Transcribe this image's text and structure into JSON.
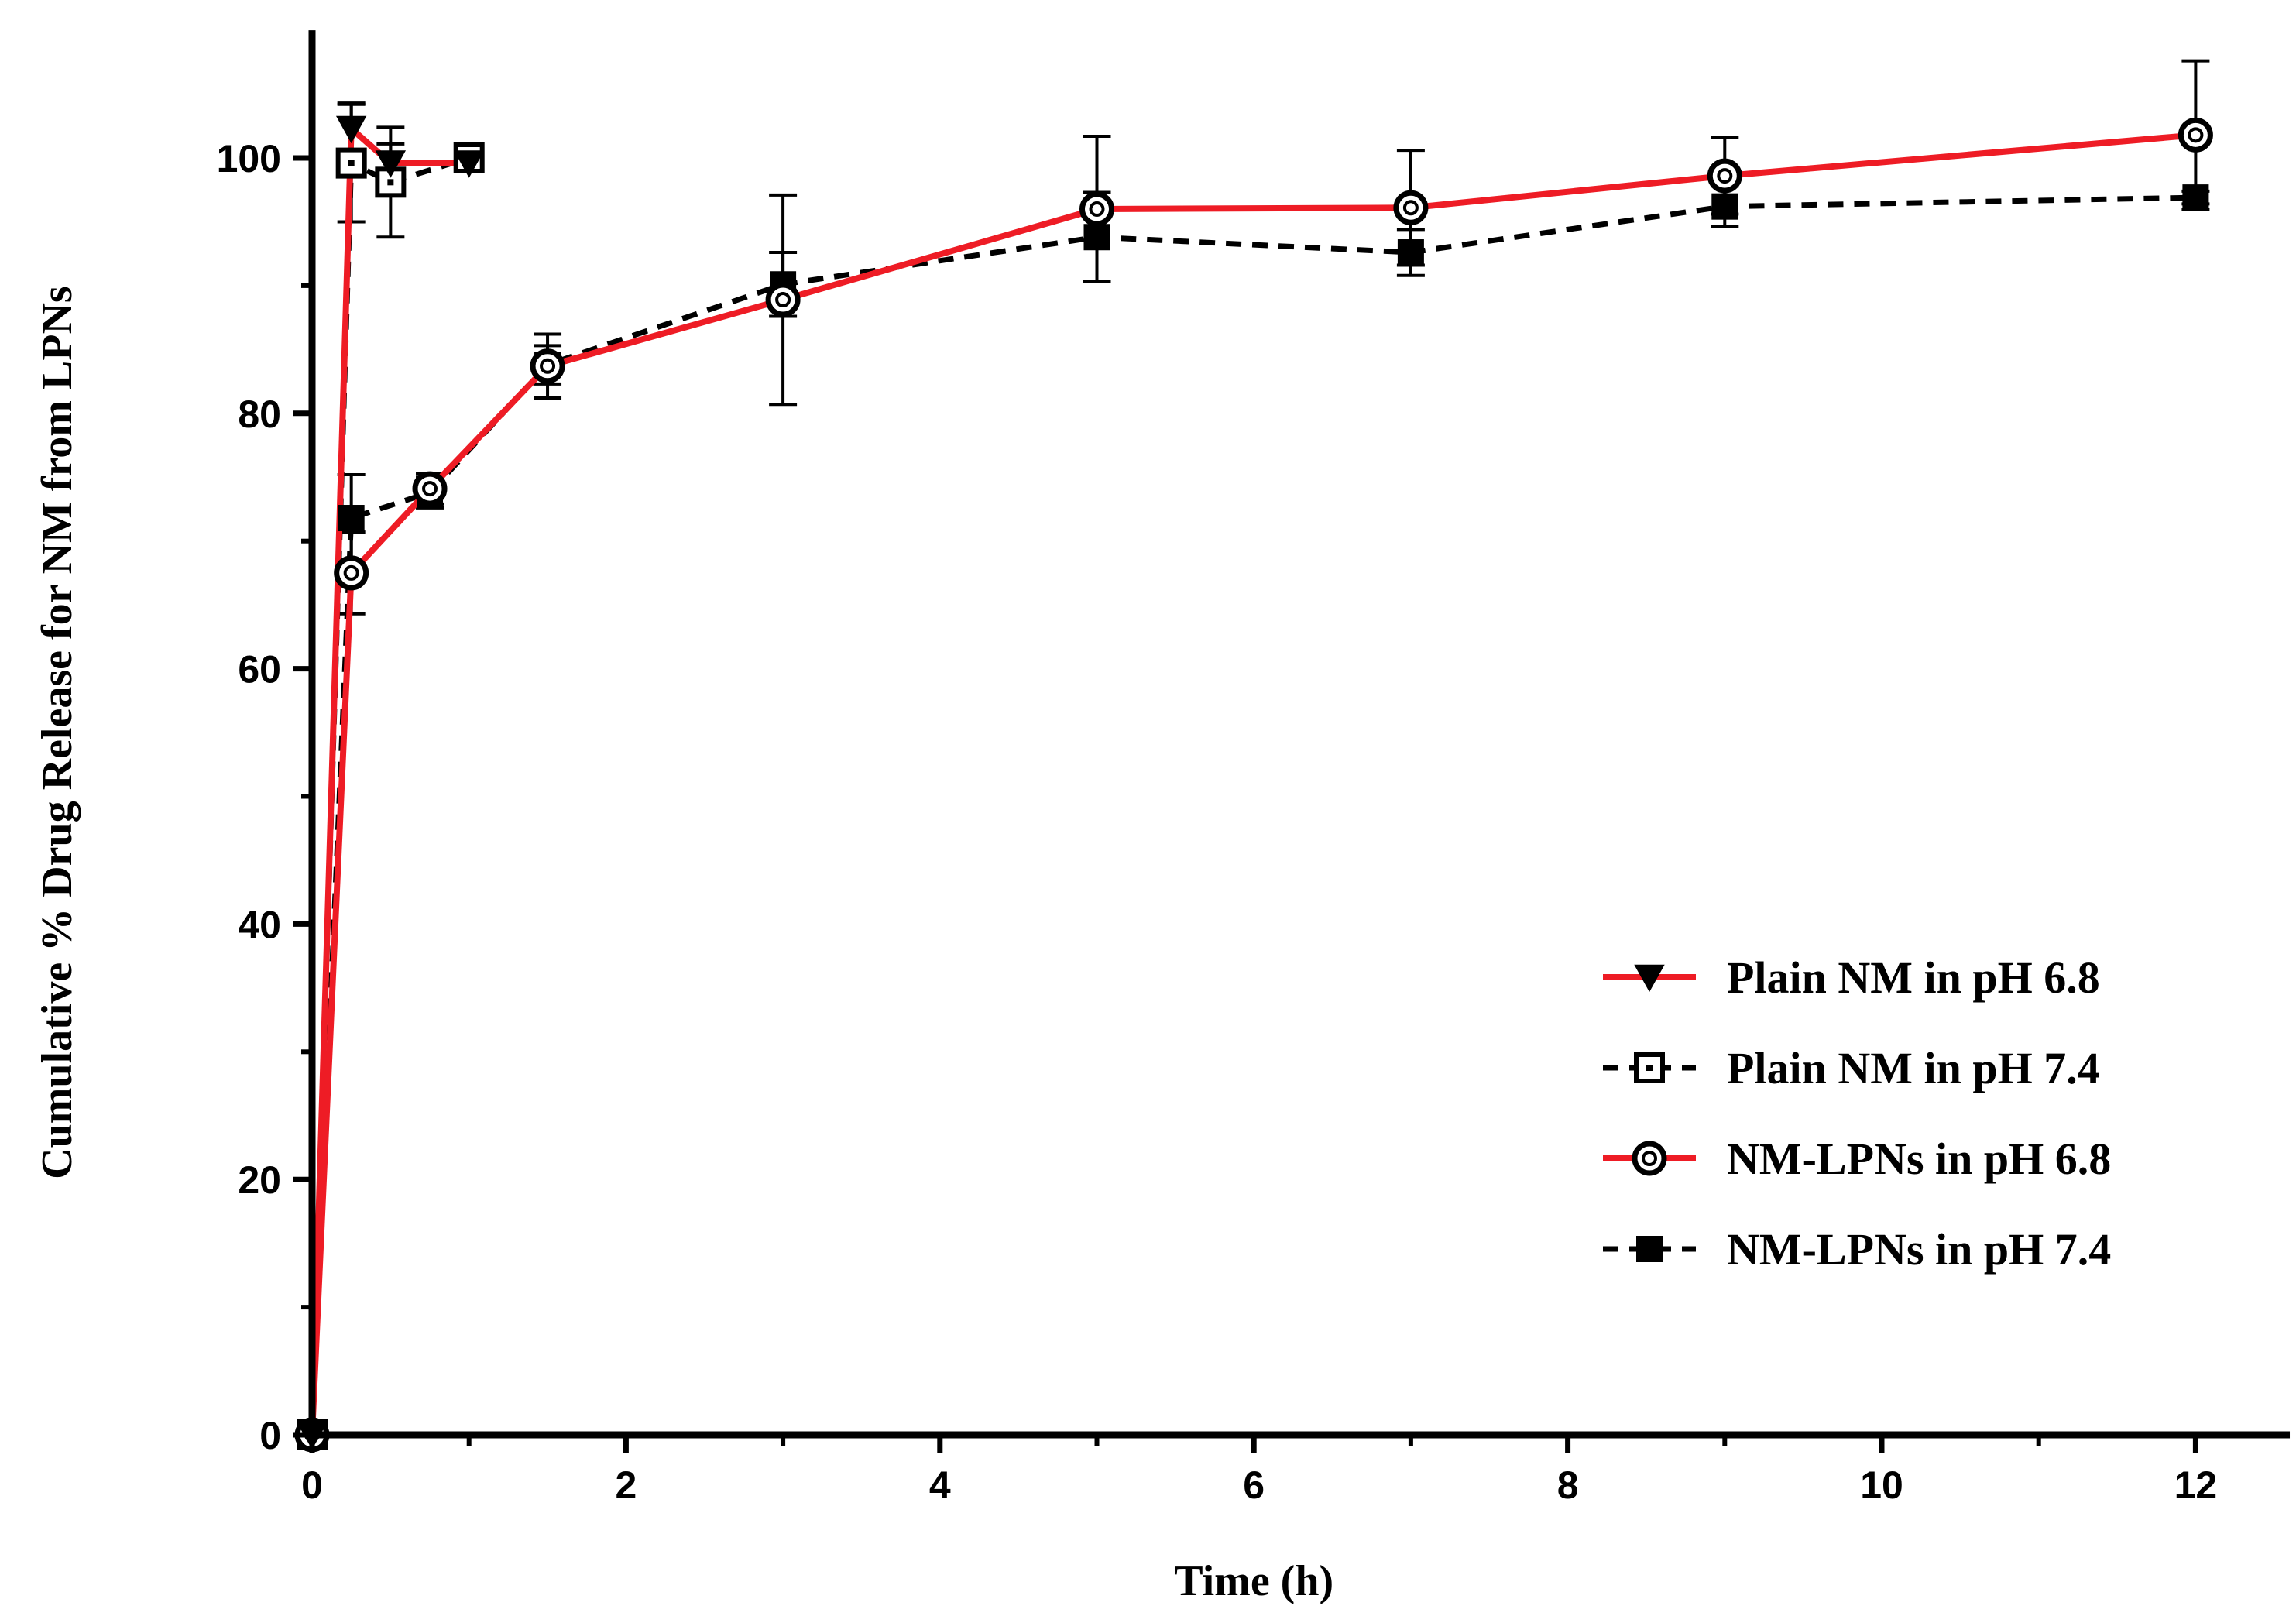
{
  "chart_data": {
    "type": "line",
    "title": "",
    "xlabel": "Time (h)",
    "ylabel": "Cumulative % Drug Release for NM from LPNs",
    "xlim": [
      0,
      12.6
    ],
    "ylim": [
      0,
      110
    ],
    "x_ticks": [
      0,
      2,
      4,
      6,
      8,
      10,
      12
    ],
    "x_minor_ticks": [
      1,
      3,
      5,
      7,
      9,
      11
    ],
    "y_ticks": [
      0,
      20,
      40,
      60,
      80,
      100
    ],
    "y_minor_ticks": [
      10,
      30,
      50,
      70,
      90
    ],
    "grid": false,
    "legend_position": "bottom-right",
    "colors": {
      "red": "#ee1c25",
      "black": "#000000"
    },
    "series": [
      {
        "name": "Plain NM in pH 6.8",
        "color": "#ee1c25",
        "line": "solid",
        "marker": "triangle-down",
        "x": [
          0,
          0.25,
          0.5,
          1
        ],
        "y": [
          0,
          102.3,
          99.6,
          99.6
        ],
        "err": [
          0,
          2.0,
          1.5,
          0.6
        ]
      },
      {
        "name": "Plain NM in pH 7.4",
        "color": "#000000",
        "line": "dashed",
        "marker": "square-open",
        "x": [
          0,
          0.25,
          0.5,
          1
        ],
        "y": [
          0,
          99.6,
          98.1,
          100.0
        ],
        "err": [
          0,
          4.6,
          4.3,
          0.5
        ]
      },
      {
        "name": "NM-LPNs in pH 6.8",
        "color": "#ee1c25",
        "line": "solid",
        "marker": "circle-dot",
        "x": [
          0,
          0.25,
          0.75,
          1.5,
          3,
          5,
          7,
          9,
          12
        ],
        "y": [
          0,
          67.5,
          74.1,
          83.7,
          88.9,
          96.0,
          96.1,
          98.6,
          101.8
        ],
        "err": [
          0,
          3.2,
          1.2,
          2.5,
          8.2,
          5.7,
          4.5,
          3.0,
          5.8
        ]
      },
      {
        "name": "NM-LPNs in pH 7.4",
        "color": "#000000",
        "line": "dashed",
        "marker": "square-filled",
        "x": [
          0,
          0.25,
          0.75,
          1.5,
          3,
          5,
          7,
          9,
          12
        ],
        "y": [
          0,
          71.8,
          73.8,
          83.8,
          90.1,
          93.8,
          92.6,
          96.2,
          96.9
        ],
        "err": [
          0,
          3.4,
          1.2,
          1.5,
          2.5,
          3.5,
          1.8,
          1.6,
          0.5
        ]
      }
    ]
  }
}
